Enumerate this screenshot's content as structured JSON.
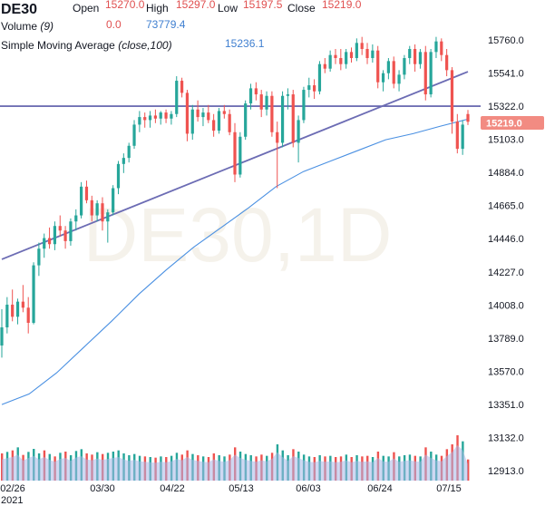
{
  "header": {
    "symbol": "DE30",
    "open_label": "Open",
    "open_value": "15270.0",
    "high_label": "High",
    "high_value": "15297.0",
    "low_label": "Low",
    "low_value": "15197.5",
    "close_label": "Close",
    "close_value": "15219.0",
    "volume_label": "Volume",
    "volume_period": "(9)",
    "volume_value1": "0.0",
    "volume_value2": "73779.4",
    "sma_label": "Simple Moving Average",
    "sma_params": "(close,100)",
    "sma_value": "15236.1"
  },
  "watermark": "DE30,1D",
  "price_tag": "15219.0",
  "colors": {
    "up": "#26a69a",
    "down": "#ef5350",
    "sma": "#4a90e2",
    "trendline": "#6c6cb4",
    "volume_area": "#a8b8e8",
    "tag_bg": "#f28b82",
    "value_red": "#e05050",
    "value_blue": "#3f7fd0"
  },
  "chart_data": {
    "type": "candlestick",
    "x_tick_labels": [
      "02/26",
      "03/30",
      "04/22",
      "05/13",
      "06/03",
      "06/24",
      "07/15"
    ],
    "x_year_label": "2021",
    "y_tick_labels": [
      "15760.0",
      "15541.0",
      "15322.0",
      "15103.0",
      "14884.0",
      "14665.0",
      "14446.0",
      "14227.0",
      "14008.0",
      "13789.0",
      "13570.0",
      "13351.0",
      "13132.0",
      "12913.0"
    ],
    "ylim": [
      12913,
      15760
    ],
    "horizontal_line": 15322,
    "trendline": [
      [
        0,
        14310
      ],
      [
        170,
        15550
      ]
    ],
    "last_close": 15219,
    "ohlc": [
      [
        13740,
        13980,
        13660,
        13860
      ],
      [
        13860,
        14060,
        13820,
        14010
      ],
      [
        14010,
        14110,
        13900,
        13930
      ],
      [
        13930,
        14050,
        13880,
        14030
      ],
      [
        14030,
        14140,
        13960,
        13990
      ],
      [
        13990,
        14060,
        13820,
        13890
      ],
      [
        13890,
        14290,
        13880,
        14270
      ],
      [
        14270,
        14420,
        14200,
        14380
      ],
      [
        14380,
        14480,
        14320,
        14450
      ],
      [
        14450,
        14520,
        14380,
        14410
      ],
      [
        14410,
        14560,
        14370,
        14530
      ],
      [
        14530,
        14600,
        14460,
        14500
      ],
      [
        14500,
        14530,
        14380,
        14430
      ],
      [
        14430,
        14580,
        14400,
        14560
      ],
      [
        14560,
        14640,
        14500,
        14600
      ],
      [
        14600,
        14820,
        14580,
        14790
      ],
      [
        14790,
        14830,
        14680,
        14700
      ],
      [
        14700,
        14730,
        14560,
        14600
      ],
      [
        14600,
        14700,
        14560,
        14680
      ],
      [
        14680,
        14720,
        14500,
        14560
      ],
      [
        14560,
        14640,
        14420,
        14620
      ],
      [
        14620,
        14800,
        14600,
        14780
      ],
      [
        14780,
        14960,
        14740,
        14940
      ],
      [
        14940,
        15010,
        14880,
        14980
      ],
      [
        14980,
        15080,
        14950,
        15060
      ],
      [
        15060,
        15230,
        15040,
        15200
      ],
      [
        15200,
        15290,
        15150,
        15250
      ],
      [
        15250,
        15280,
        15180,
        15230
      ],
      [
        15230,
        15290,
        15180,
        15260
      ],
      [
        15260,
        15300,
        15210,
        15240
      ],
      [
        15240,
        15290,
        15200,
        15280
      ],
      [
        15280,
        15300,
        15210,
        15240
      ],
      [
        15240,
        15290,
        15200,
        15270
      ],
      [
        15270,
        15520,
        15250,
        15490
      ],
      [
        15490,
        15510,
        15380,
        15410
      ],
      [
        15410,
        15430,
        15090,
        15140
      ],
      [
        15140,
        15330,
        15100,
        15300
      ],
      [
        15300,
        15360,
        15220,
        15250
      ],
      [
        15250,
        15310,
        15190,
        15280
      ],
      [
        15280,
        15330,
        15210,
        15230
      ],
      [
        15230,
        15270,
        15120,
        15160
      ],
      [
        15160,
        15310,
        15140,
        15290
      ],
      [
        15290,
        15330,
        15240,
        15270
      ],
      [
        15270,
        15300,
        15130,
        15150
      ],
      [
        15150,
        15210,
        14820,
        14870
      ],
      [
        14870,
        15150,
        14850,
        15120
      ],
      [
        15120,
        15360,
        15100,
        15340
      ],
      [
        15340,
        15470,
        15300,
        15440
      ],
      [
        15440,
        15480,
        15360,
        15400
      ],
      [
        15400,
        15430,
        15250,
        15300
      ],
      [
        15300,
        15420,
        15260,
        15390
      ],
      [
        15390,
        15420,
        15120,
        15150
      ],
      [
        15150,
        15220,
        14780,
        15080
      ],
      [
        15080,
        15420,
        15050,
        15390
      ],
      [
        15390,
        15440,
        15300,
        15400
      ],
      [
        15400,
        15430,
        15050,
        15080
      ],
      [
        15080,
        15260,
        14950,
        15230
      ],
      [
        15230,
        15450,
        15210,
        15430
      ],
      [
        15430,
        15510,
        15380,
        15460
      ],
      [
        15460,
        15500,
        15370,
        15420
      ],
      [
        15420,
        15620,
        15400,
        15600
      ],
      [
        15600,
        15640,
        15540,
        15570
      ],
      [
        15570,
        15690,
        15550,
        15660
      ],
      [
        15660,
        15700,
        15600,
        15640
      ],
      [
        15640,
        15700,
        15560,
        15600
      ],
      [
        15600,
        15700,
        15570,
        15680
      ],
      [
        15680,
        15710,
        15610,
        15640
      ],
      [
        15640,
        15770,
        15620,
        15740
      ],
      [
        15740,
        15780,
        15660,
        15700
      ],
      [
        15700,
        15740,
        15600,
        15640
      ],
      [
        15640,
        15730,
        15610,
        15690
      ],
      [
        15690,
        15720,
        15440,
        15480
      ],
      [
        15480,
        15560,
        15420,
        15540
      ],
      [
        15540,
        15640,
        15500,
        15620
      ],
      [
        15620,
        15650,
        15440,
        15470
      ],
      [
        15470,
        15560,
        15420,
        15530
      ],
      [
        15530,
        15660,
        15500,
        15640
      ],
      [
        15640,
        15720,
        15600,
        15700
      ],
      [
        15700,
        15730,
        15550,
        15600
      ],
      [
        15600,
        15700,
        15570,
        15680
      ],
      [
        15680,
        15720,
        15360,
        15400
      ],
      [
        15400,
        15700,
        15380,
        15680
      ],
      [
        15680,
        15780,
        15640,
        15750
      ],
      [
        15750,
        15770,
        15620,
        15660
      ],
      [
        15660,
        15700,
        15520,
        15560
      ],
      [
        15560,
        15580,
        15140,
        15220
      ],
      [
        15220,
        15270,
        15010,
        15040
      ],
      [
        15040,
        15230,
        15000,
        15200
      ],
      [
        15270,
        15297,
        15197.5,
        15219
      ]
    ],
    "sma100": [
      [
        0,
        13350
      ],
      [
        10,
        13420
      ],
      [
        20,
        13560
      ],
      [
        30,
        13730
      ],
      [
        40,
        13900
      ],
      [
        50,
        14080
      ],
      [
        60,
        14240
      ],
      [
        70,
        14390
      ],
      [
        80,
        14520
      ],
      [
        90,
        14650
      ],
      [
        100,
        14790
      ],
      [
        110,
        14890
      ],
      [
        120,
        14960
      ],
      [
        130,
        15030
      ],
      [
        140,
        15100
      ],
      [
        150,
        15140
      ],
      [
        160,
        15190
      ],
      [
        170,
        15236
      ]
    ],
    "volume": [
      [
        90,
        false
      ],
      [
        95,
        true
      ],
      [
        100,
        false
      ],
      [
        110,
        true
      ],
      [
        85,
        false
      ],
      [
        95,
        true
      ],
      [
        105,
        true
      ],
      [
        90,
        true
      ],
      [
        100,
        false
      ],
      [
        88,
        true
      ],
      [
        80,
        false
      ],
      [
        92,
        true
      ],
      [
        96,
        false
      ],
      [
        84,
        true
      ],
      [
        98,
        true
      ],
      [
        104,
        true
      ],
      [
        90,
        false
      ],
      [
        86,
        false
      ],
      [
        94,
        true
      ],
      [
        88,
        false
      ],
      [
        92,
        true
      ],
      [
        96,
        true
      ],
      [
        100,
        true
      ],
      [
        90,
        true
      ],
      [
        84,
        true
      ],
      [
        88,
        true
      ],
      [
        82,
        true
      ],
      [
        80,
        false
      ],
      [
        78,
        true
      ],
      [
        76,
        false
      ],
      [
        80,
        true
      ],
      [
        78,
        false
      ],
      [
        82,
        true
      ],
      [
        92,
        true
      ],
      [
        86,
        false
      ],
      [
        100,
        false
      ],
      [
        88,
        true
      ],
      [
        84,
        false
      ],
      [
        80,
        true
      ],
      [
        78,
        false
      ],
      [
        90,
        false
      ],
      [
        84,
        true
      ],
      [
        80,
        true
      ],
      [
        86,
        false
      ],
      [
        110,
        false
      ],
      [
        96,
        true
      ],
      [
        88,
        true
      ],
      [
        84,
        true
      ],
      [
        80,
        false
      ],
      [
        86,
        false
      ],
      [
        82,
        true
      ],
      [
        92,
        false
      ],
      [
        120,
        true
      ],
      [
        100,
        true
      ],
      [
        84,
        true
      ],
      [
        104,
        false
      ],
      [
        96,
        true
      ],
      [
        86,
        true
      ],
      [
        80,
        true
      ],
      [
        78,
        false
      ],
      [
        84,
        true
      ],
      [
        80,
        false
      ],
      [
        82,
        true
      ],
      [
        78,
        false
      ],
      [
        80,
        false
      ],
      [
        86,
        true
      ],
      [
        78,
        false
      ],
      [
        84,
        true
      ],
      [
        80,
        false
      ],
      [
        82,
        false
      ],
      [
        78,
        true
      ],
      [
        96,
        false
      ],
      [
        82,
        true
      ],
      [
        80,
        true
      ],
      [
        94,
        false
      ],
      [
        80,
        true
      ],
      [
        84,
        true
      ],
      [
        86,
        true
      ],
      [
        82,
        false
      ],
      [
        80,
        true
      ],
      [
        110,
        false
      ],
      [
        96,
        true
      ],
      [
        86,
        true
      ],
      [
        82,
        false
      ],
      [
        104,
        false
      ],
      [
        120,
        false
      ],
      [
        150,
        false
      ],
      [
        130,
        true
      ],
      [
        70,
        false
      ]
    ]
  }
}
